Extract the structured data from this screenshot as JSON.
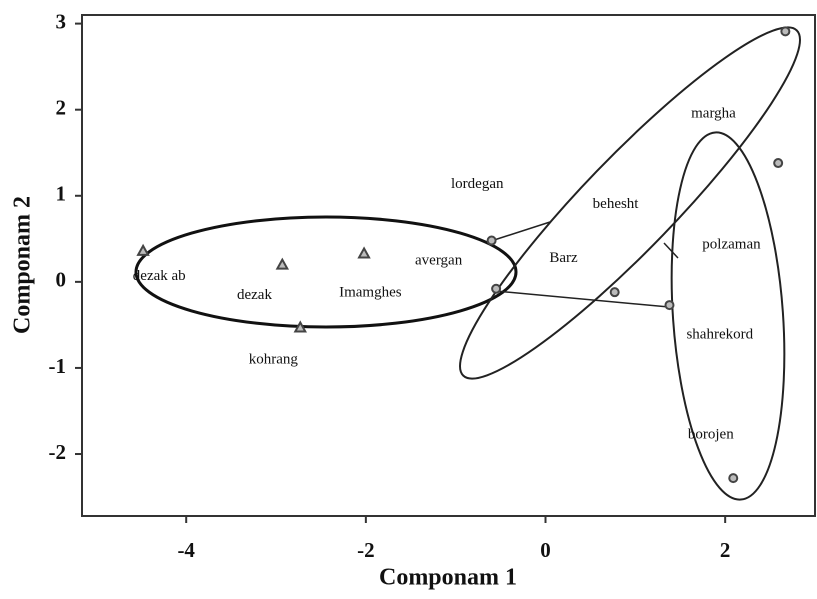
{
  "chart_data": {
    "type": "scatter",
    "x_label": "Componam 1",
    "y_label": "Componam 2",
    "xlim": [
      -5.16,
      3.0
    ],
    "ylim": [
      -2.72,
      3.1
    ],
    "xticks": [
      -4,
      -2,
      0,
      2
    ],
    "yticks": [
      -2,
      -1,
      0,
      1,
      2,
      3
    ],
    "series": [
      {
        "marker": "triangle",
        "color": "#444444",
        "x": [
          -4.48,
          -2.93,
          -2.02,
          -2.73
        ],
        "values": [
          0.36,
          0.2,
          0.33,
          -0.53
        ]
      },
      {
        "marker": "circle",
        "color": "#444444",
        "x": [
          -0.6,
          -0.55,
          0.77,
          1.38,
          2.59,
          2.67,
          2.09
        ],
        "values": [
          0.48,
          -0.08,
          -0.12,
          -0.27,
          1.38,
          2.91,
          -2.28
        ]
      }
    ],
    "annotations": [
      {
        "text": "dezak ab",
        "x": -4.3,
        "y": 0.06
      },
      {
        "text": "dezak",
        "x": -3.24,
        "y": -0.16
      },
      {
        "text": "Imamghes",
        "x": -1.95,
        "y": -0.13
      },
      {
        "text": "avergan",
        "x": -1.19,
        "y": 0.24
      },
      {
        "text": "kohrang",
        "x": -3.03,
        "y": -0.91
      },
      {
        "text": "lordegan",
        "x": -0.76,
        "y": 1.13
      },
      {
        "text": "behesht",
        "x": 0.78,
        "y": 0.9
      },
      {
        "text": "Barz",
        "x": 0.2,
        "y": 0.27
      },
      {
        "text": "margha",
        "x": 1.87,
        "y": 1.95
      },
      {
        "text": "polzaman",
        "x": 2.07,
        "y": 0.43
      },
      {
        "text": "shahrekord",
        "x": 1.94,
        "y": -0.62
      },
      {
        "text": "borojen",
        "x": 1.84,
        "y": -1.78
      }
    ]
  }
}
